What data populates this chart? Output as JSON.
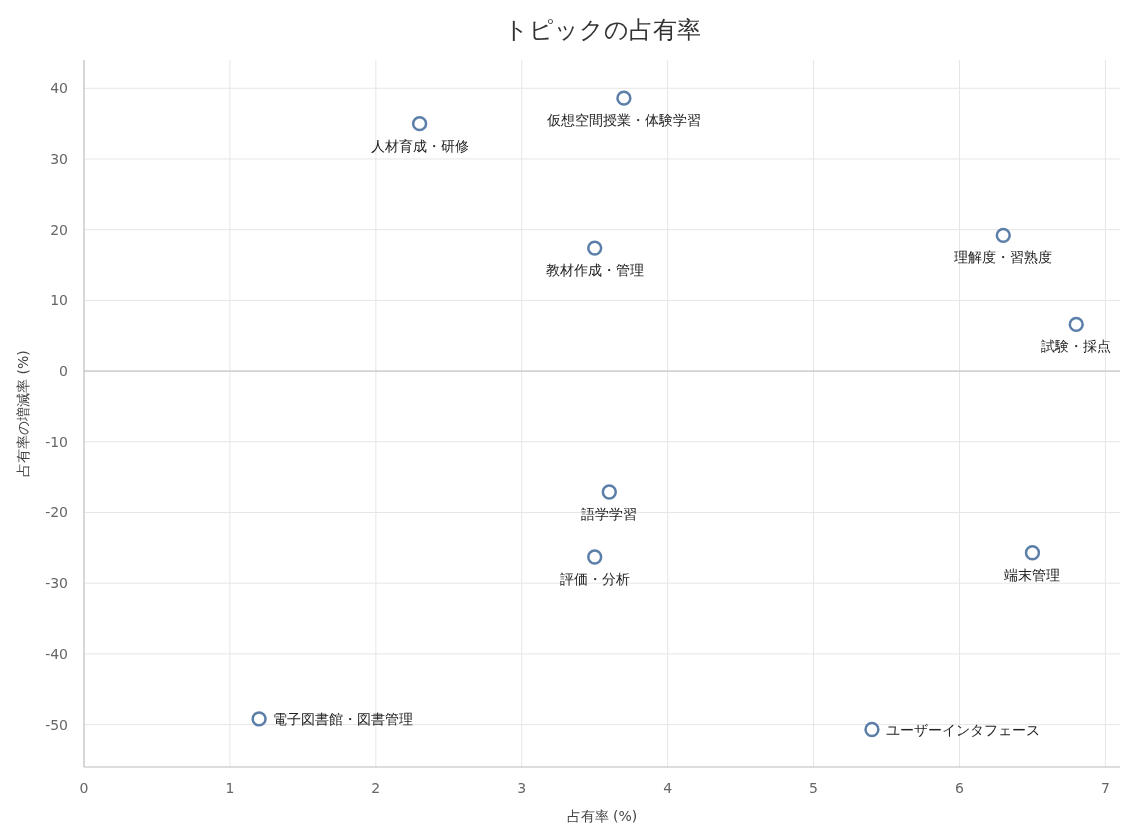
{
  "chart_data": {
    "type": "scatter",
    "title": "トピックの占有率",
    "xlabel": "占有率 (%)",
    "ylabel": "占有率の増減率 (%)",
    "xlim": [
      0,
      7.1
    ],
    "xticks": [
      0,
      1,
      2,
      3,
      4,
      5,
      6,
      7
    ],
    "ylim": [
      -56,
      44
    ],
    "yticks": [
      -50,
      -40,
      -30,
      -20,
      -10,
      0,
      10,
      20,
      30,
      40
    ],
    "grid": true,
    "marker": "circle",
    "ref_lines": [
      {
        "axis": "y",
        "value": 0,
        "color": "#bdbdbd"
      }
    ],
    "series": [
      {
        "name": "人材育成・研修",
        "color": "#5b7fa8",
        "x": [
          2.3
        ],
        "values": [
          35.0
        ]
      },
      {
        "name": "仮想空間授業・体験学習",
        "color": "#5b7fa8",
        "x": [
          3.7
        ],
        "values": [
          38.6
        ]
      },
      {
        "name": "教材作成・管理",
        "color": "#5b7fa8",
        "x": [
          3.5
        ],
        "values": [
          17.4
        ]
      },
      {
        "name": "理解度・習熟度",
        "color": "#5b7fa8",
        "x": [
          6.3
        ],
        "values": [
          19.2
        ]
      },
      {
        "name": "試験・採点",
        "color": "#5b7fa8",
        "x": [
          6.8
        ],
        "values": [
          6.6
        ]
      },
      {
        "name": "語学学習",
        "color": "#5b7fa8",
        "x": [
          3.6
        ],
        "values": [
          -17.1
        ]
      },
      {
        "name": "評価・分析",
        "color": "#5b7fa8",
        "x": [
          3.5
        ],
        "values": [
          -26.3
        ]
      },
      {
        "name": "端末管理",
        "color": "#5b7fa8",
        "x": [
          6.5
        ],
        "values": [
          -25.7
        ]
      },
      {
        "name": "電子図書館・図書管理",
        "color": "#5b7fa8",
        "x": [
          1.2
        ],
        "values": [
          -49.2
        ]
      },
      {
        "name": "ユーザーインタフェース",
        "color": "#5b7fa8",
        "x": [
          5.4
        ],
        "values": [
          -50.7
        ]
      }
    ]
  }
}
